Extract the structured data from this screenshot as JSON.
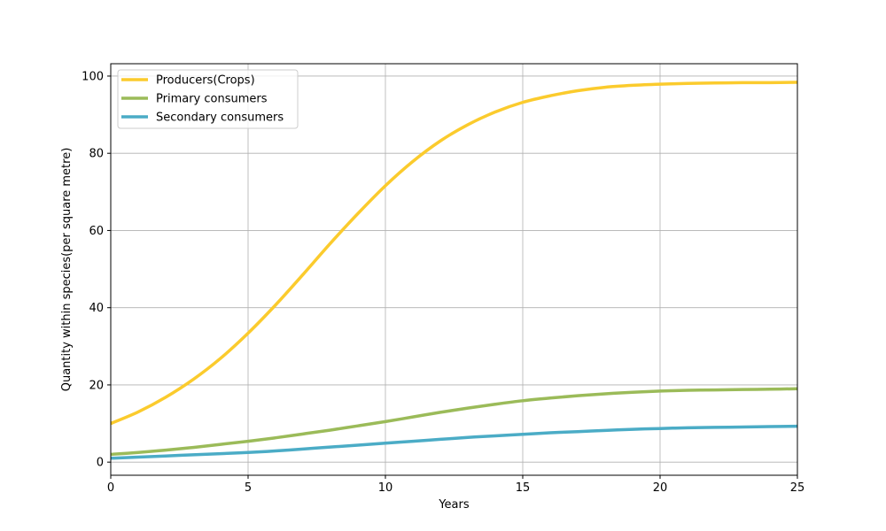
{
  "chart_data": {
    "type": "line",
    "title": "",
    "xlabel": "Years",
    "ylabel": "Quantity within species(per square metre)",
    "xlim": [
      0,
      25
    ],
    "ylim": [
      -3.4,
      103.2
    ],
    "xticks": [
      0,
      5,
      10,
      15,
      20,
      25
    ],
    "yticks": [
      0,
      20,
      40,
      60,
      80,
      100
    ],
    "grid": true,
    "legend_position": "top-left",
    "x": [
      0,
      1,
      2,
      3,
      4,
      5,
      6,
      7,
      8,
      9,
      10,
      11,
      12,
      13,
      14,
      15,
      16,
      17,
      18,
      19,
      20,
      21,
      22,
      23,
      24,
      25
    ],
    "series": [
      {
        "name": "Producers(Crops)",
        "color": "#fbcb2d",
        "values": [
          10.0,
          13.0,
          16.8,
          21.4,
          26.9,
          33.4,
          40.7,
          48.6,
          56.7,
          64.4,
          71.6,
          77.9,
          83.2,
          87.4,
          90.7,
          93.2,
          94.9,
          96.2,
          97.1,
          97.6,
          97.9,
          98.1,
          98.2,
          98.3,
          98.3,
          98.4
        ]
      },
      {
        "name": "Primary consumers",
        "color": "#9bbb59",
        "values": [
          2.0,
          2.5,
          3.1,
          3.8,
          4.6,
          5.4,
          6.3,
          7.3,
          8.3,
          9.4,
          10.5,
          11.7,
          12.9,
          14.0,
          15.0,
          15.9,
          16.6,
          17.2,
          17.7,
          18.1,
          18.4,
          18.6,
          18.7,
          18.8,
          18.9,
          19.0
        ]
      },
      {
        "name": "Secondary consumers",
        "color": "#4bacc6",
        "values": [
          1.0,
          1.3,
          1.6,
          1.9,
          2.2,
          2.5,
          2.9,
          3.4,
          3.9,
          4.4,
          4.9,
          5.4,
          5.9,
          6.4,
          6.8,
          7.2,
          7.6,
          7.9,
          8.2,
          8.5,
          8.7,
          8.9,
          9.0,
          9.1,
          9.2,
          9.3
        ]
      }
    ]
  }
}
